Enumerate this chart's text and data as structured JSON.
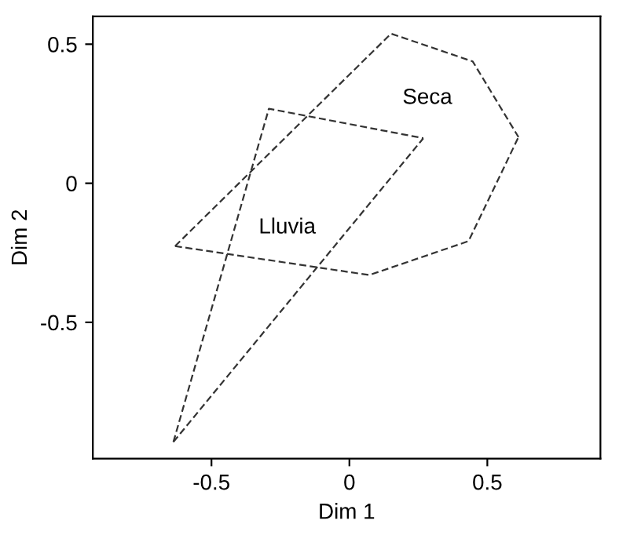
{
  "chart_data": {
    "type": "line",
    "xlabel": "Dim 1",
    "ylabel": "Dim 2",
    "xlim": [
      -0.93,
      0.91
    ],
    "ylim": [
      -0.99,
      0.6
    ],
    "xticks": [
      -0.5,
      0,
      0.5
    ],
    "yticks": [
      -0.5,
      0,
      0.5
    ],
    "grid": false,
    "marker": "none",
    "line_style": "dashed",
    "series": [
      {
        "color": "#333333",
        "x": [
          -0.632,
          0.151,
          0.447,
          0.613
        ],
        "values": [
          -0.226,
          0.538,
          0.438,
          0.166
        ]
      },
      {
        "color": "#333333",
        "x": [
          -0.632,
          0.072,
          0.432,
          0.613
        ],
        "values": [
          -0.226,
          -0.33,
          -0.208,
          0.166
        ]
      },
      {
        "color": "#333333",
        "x": [
          -0.638,
          -0.292,
          0.268
        ],
        "values": [
          -0.93,
          0.268,
          0.162
        ]
      },
      {
        "color": "#333333",
        "x": [
          -0.638,
          0.268
        ],
        "values": [
          -0.93,
          0.162
        ]
      }
    ],
    "annotations": [
      "Seca",
      "Lluvia"
    ]
  }
}
